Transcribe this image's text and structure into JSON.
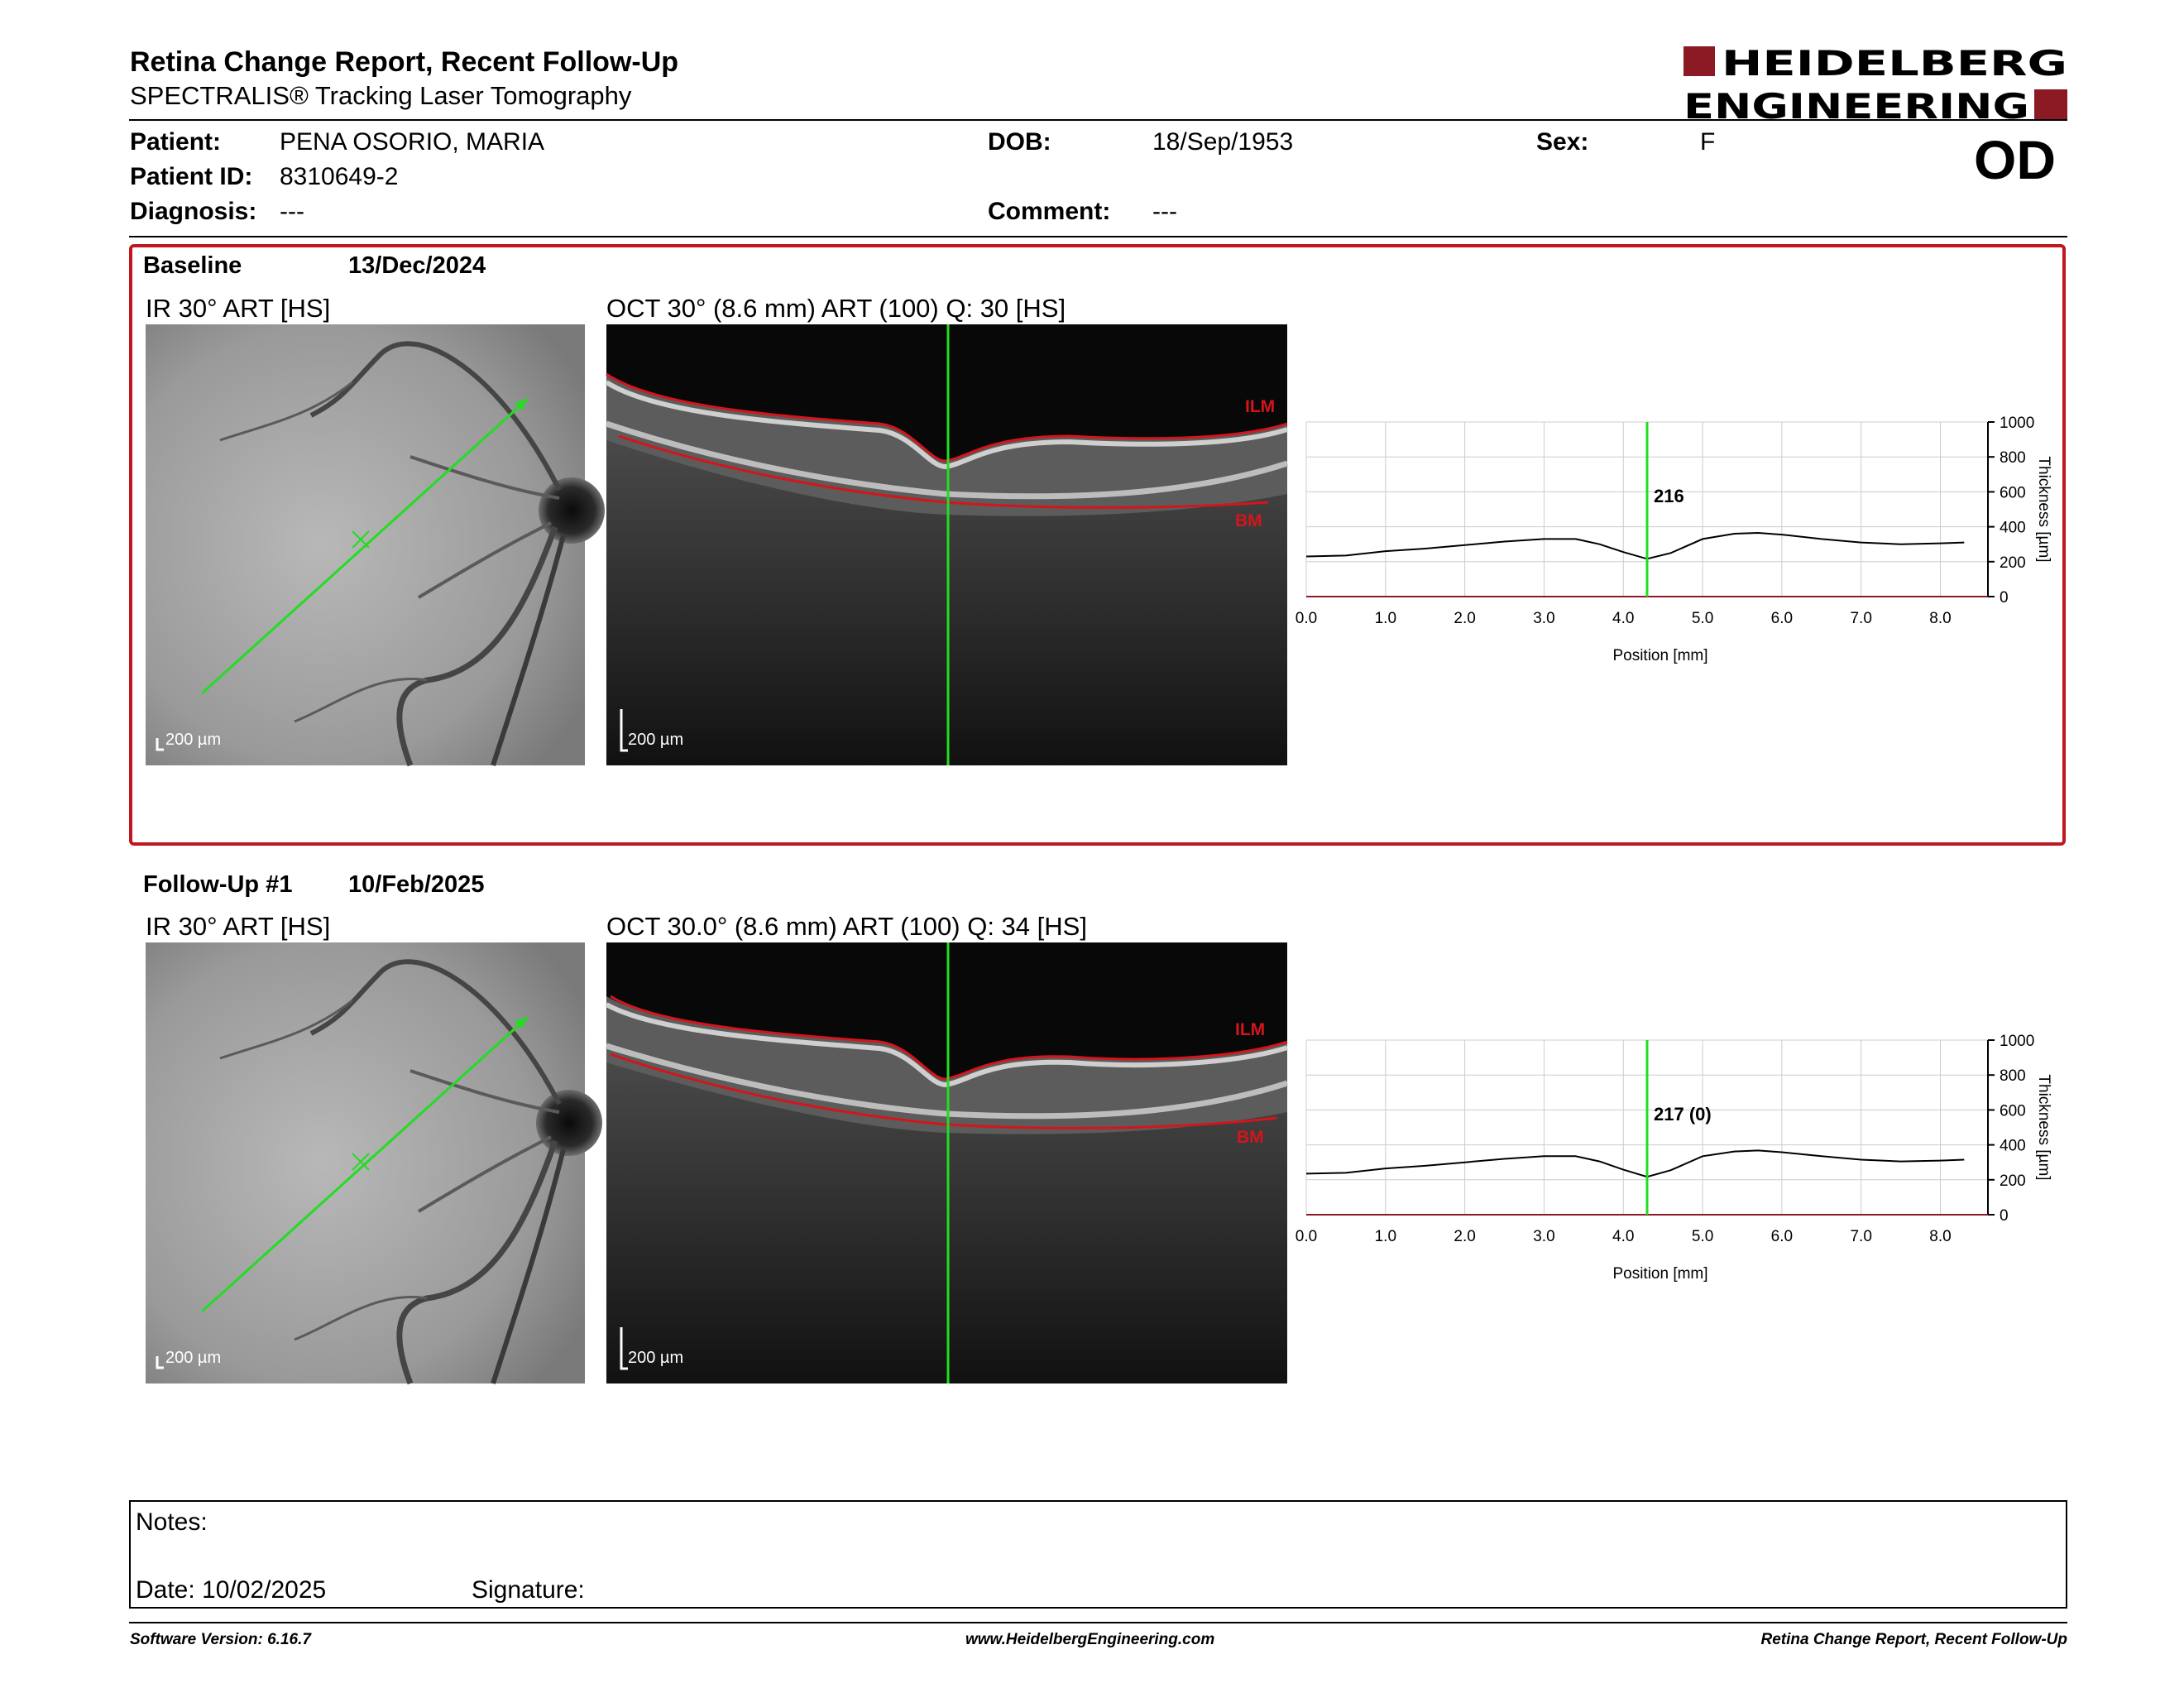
{
  "header": {
    "title": "Retina Change Report, Recent Follow-Up",
    "subtitle": "SPECTRALIS® Tracking Laser Tomography",
    "logo_line1": "HEIDELBERG",
    "logo_line2": "ENGINEERING",
    "eye": "OD"
  },
  "patient": {
    "name_label": "Patient:",
    "name": "PENA OSORIO, MARIA",
    "id_label": "Patient ID:",
    "id": "8310649-2",
    "diagnosis_label": "Diagnosis:",
    "diagnosis": "---",
    "dob_label": "DOB:",
    "dob": "18/Sep/1953",
    "comment_label": "Comment:",
    "comment": "---",
    "sex_label": "Sex:",
    "sex": "F"
  },
  "baseline": {
    "label": "Baseline",
    "date": "13/Dec/2024",
    "ir_title": "IR 30° ART [HS]",
    "oct_title": "OCT 30° (8.6 mm) ART (100) Q: 30 [HS]",
    "scale_bar": "200 µm",
    "ilm_label": "ILM",
    "bm_label": "BM"
  },
  "followup": {
    "label": "Follow-Up #1",
    "date": "10/Feb/2025",
    "ir_title": "IR 30° ART [HS]",
    "oct_title": "OCT 30.0° (8.6 mm) ART (100) Q: 34 [HS]",
    "scale_bar": "200 µm",
    "ilm_label": "ILM",
    "bm_label": "BM"
  },
  "notes": {
    "notes_label": "Notes:",
    "date_label": "Date: 10/02/2025",
    "signature_label": "Signature:"
  },
  "footer": {
    "left": "Software Version: 6.16.7",
    "center": "www.HeidelbergEngineering.com",
    "right": "Retina Change Report, Recent Follow-Up"
  },
  "colors": {
    "accent": "#c0171f",
    "marker": "#22dd22",
    "segmentation": "#d4151b"
  },
  "chart_data": [
    {
      "type": "line",
      "xlabel": "Position [mm]",
      "ylabel": "Thickness [µm]",
      "xlim": [
        0,
        8.6
      ],
      "ylim": [
        0,
        1000
      ],
      "xticks": [
        "0.0",
        "1.0",
        "2.0",
        "3.0",
        "4.0",
        "5.0",
        "6.0",
        "7.0",
        "8.0"
      ],
      "yticks": [
        "0",
        "200",
        "400",
        "600",
        "800",
        "1000"
      ],
      "grid": true,
      "marker_x": 4.3,
      "marker_label": "216",
      "x": [
        0.0,
        0.5,
        1.0,
        1.5,
        2.0,
        2.5,
        3.0,
        3.4,
        3.7,
        4.0,
        4.3,
        4.6,
        5.0,
        5.4,
        5.7,
        6.0,
        6.5,
        7.0,
        7.5,
        8.0,
        8.3
      ],
      "y": [
        230,
        235,
        260,
        275,
        295,
        315,
        330,
        330,
        300,
        255,
        216,
        250,
        330,
        360,
        365,
        355,
        330,
        310,
        300,
        305,
        310
      ]
    },
    {
      "type": "line",
      "xlabel": "Position [mm]",
      "ylabel": "Thickness [µm]",
      "xlim": [
        0,
        8.6
      ],
      "ylim": [
        0,
        1000
      ],
      "xticks": [
        "0.0",
        "1.0",
        "2.0",
        "3.0",
        "4.0",
        "5.0",
        "6.0",
        "7.0",
        "8.0"
      ],
      "yticks": [
        "0",
        "200",
        "400",
        "600",
        "800",
        "1000"
      ],
      "grid": true,
      "marker_x": 4.3,
      "marker_label": "217 (0)",
      "x": [
        0.0,
        0.5,
        1.0,
        1.5,
        2.0,
        2.5,
        3.0,
        3.4,
        3.7,
        4.0,
        4.3,
        4.6,
        5.0,
        5.4,
        5.7,
        6.0,
        6.5,
        7.0,
        7.5,
        8.0,
        8.3
      ],
      "y": [
        235,
        240,
        265,
        280,
        300,
        320,
        335,
        335,
        305,
        258,
        217,
        255,
        335,
        362,
        368,
        358,
        335,
        315,
        305,
        310,
        315
      ]
    }
  ]
}
